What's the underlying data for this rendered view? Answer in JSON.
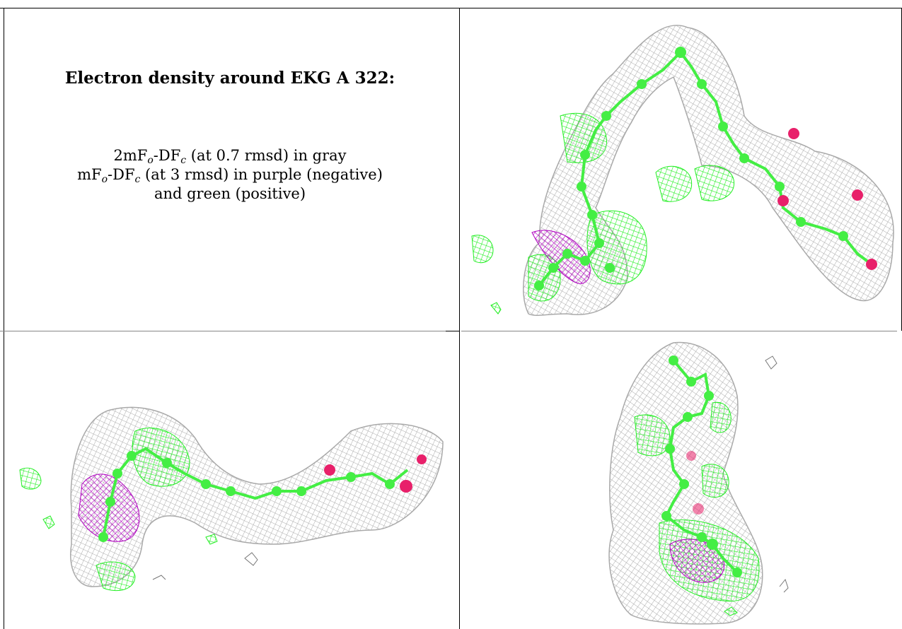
{
  "title": "Electron density around EKG A 322:",
  "legend": {
    "line1": {
      "a": "2mF",
      "sub_o": "o",
      "b": "-DF",
      "sub_c": "c",
      "rest": " (at 0.7 rmsd) in gray"
    },
    "line2": {
      "a": "mF",
      "sub_o": "o",
      "b": "-DF",
      "sub_c": "c",
      "rest": " (at 3 rmsd) in purple (negative)"
    },
    "line3": "and green (positive)"
  },
  "colors": {
    "mesh_2fofc": "#a9a9a9",
    "mesh_positive": "#22ee22",
    "mesh_negative": "#b000c0",
    "carbon_atom": "#44ee44",
    "oxygen_atom": "#e8206a"
  },
  "panels": [
    {
      "name": "view-1",
      "content": "density-map"
    },
    {
      "name": "view-2",
      "content": "density-map"
    },
    {
      "name": "view-3",
      "content": "density-map"
    }
  ]
}
